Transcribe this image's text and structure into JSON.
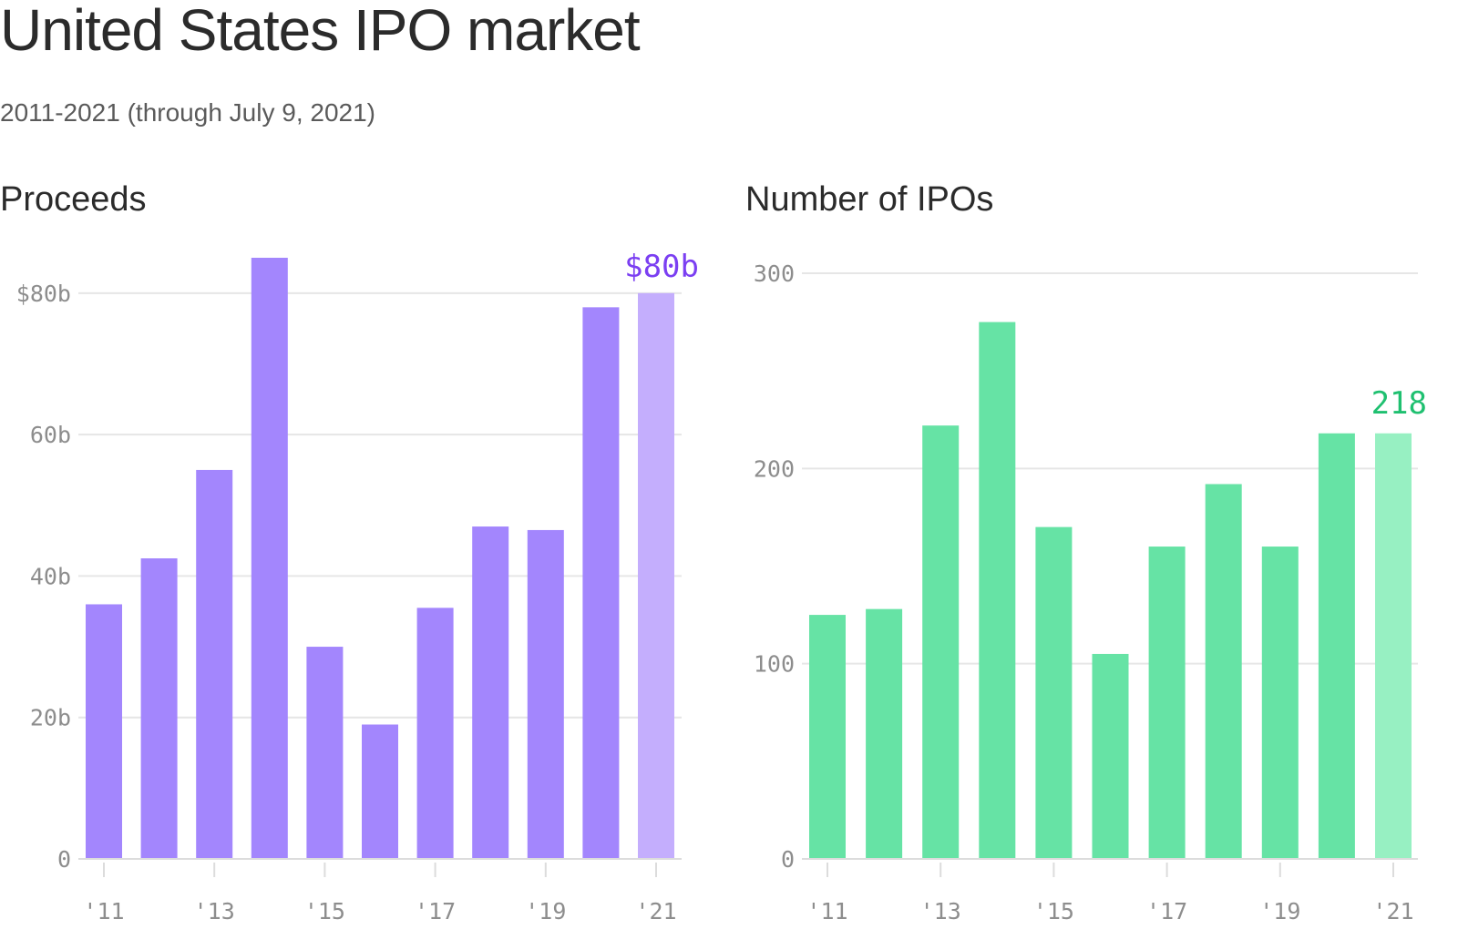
{
  "title": "United States IPO market",
  "subtitle": "2011-2021 (through July 9, 2021)",
  "colors": {
    "proceeds_bar": "#a386fd",
    "proceeds_highlight": "#c4aefd",
    "proceeds_callout": "#7b3ff2",
    "ipos_bar": "#66e3a5",
    "ipos_highlight": "#97f0c2",
    "ipos_callout": "#1fc070",
    "grid": "#e6e6e6",
    "axis": "#dcdcdc"
  },
  "chart_data": [
    {
      "type": "bar",
      "title": "Proceeds",
      "categories": [
        "2011",
        "2012",
        "2013",
        "2014",
        "2015",
        "2016",
        "2017",
        "2018",
        "2019",
        "2020",
        "2021"
      ],
      "values": [
        36,
        42.5,
        55,
        85,
        30,
        19,
        35.5,
        47,
        46.5,
        78,
        80
      ],
      "ylim": [
        0,
        85
      ],
      "y_ticks": [
        0,
        20,
        40,
        60,
        80
      ],
      "y_tick_labels": [
        "0",
        "20b",
        "40b",
        "60b",
        "$80b"
      ],
      "x_tick_positions": [
        0,
        2,
        4,
        6,
        8,
        10
      ],
      "x_tick_labels": [
        "'11",
        "'13",
        "'15",
        "'17",
        "'19",
        "'21"
      ],
      "highlight_index": 10,
      "callout": "$80b",
      "xlabel": "",
      "ylabel": ""
    },
    {
      "type": "bar",
      "title": "Number of IPOs",
      "categories": [
        "2011",
        "2012",
        "2013",
        "2014",
        "2015",
        "2016",
        "2017",
        "2018",
        "2019",
        "2020",
        "2021"
      ],
      "values": [
        125,
        128,
        222,
        275,
        170,
        105,
        160,
        192,
        160,
        218,
        218
      ],
      "ylim": [
        0,
        300
      ],
      "y_ticks": [
        0,
        100,
        200,
        300
      ],
      "y_tick_labels": [
        "0",
        "100",
        "200",
        "300"
      ],
      "x_tick_positions": [
        0,
        2,
        4,
        6,
        8,
        10
      ],
      "x_tick_labels": [
        "'11",
        "'13",
        "'15",
        "'17",
        "'19",
        "'21"
      ],
      "highlight_index": 10,
      "callout": "218",
      "xlabel": "",
      "ylabel": ""
    }
  ]
}
